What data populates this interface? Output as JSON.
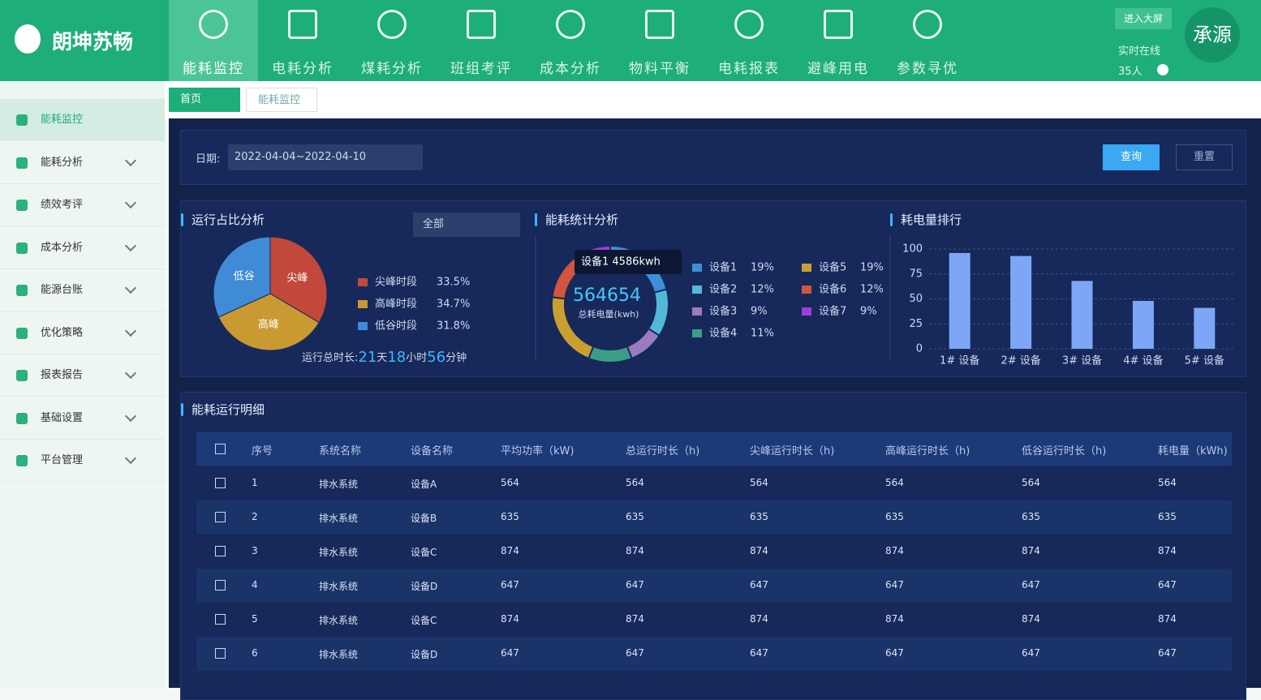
{
  "header": {
    "logo": "朗坤苏畅",
    "nav": [
      "能耗监控",
      "电耗分析",
      "煤耗分析",
      "班组考评",
      "成本分析",
      "物料平衡",
      "电耗报表",
      "避峰用电",
      "参数寻优"
    ],
    "screen_button": "进入大屏",
    "online_label": "实时在线",
    "online_count": "35人",
    "user": "承源"
  },
  "sidebar": {
    "items": [
      "能耗监控",
      "能耗分析",
      "绩效考评",
      "成本分析",
      "能源台账",
      "优化策略",
      "报表报告",
      "基础设置",
      "平台管理"
    ]
  },
  "tabs": [
    "首页",
    "能耗监控"
  ],
  "filter": {
    "date_label": "日期:",
    "date_value": "2022-04-04~2022-04-10",
    "query": "查询",
    "reset": "重置"
  },
  "runtime": {
    "title": "运行占比分析",
    "select": "全部",
    "chart": {
      "type": "pie",
      "categories": [
        "尖峰",
        "高峰",
        "低谷"
      ],
      "legend": [
        "尖峰时段",
        "高峰时段",
        "低谷时段"
      ],
      "values": [
        33.5,
        34.7,
        31.8
      ],
      "value_labels": [
        "33.5%",
        "34.7%",
        "31.8%"
      ],
      "colors": [
        "#c2483a",
        "#c99a32",
        "#3f8bd6"
      ]
    },
    "total_label": "运行总时长:",
    "total": [
      {
        "value": "21",
        "unit": "天"
      },
      {
        "value": "18",
        "unit": "小时"
      },
      {
        "value": "56",
        "unit": "分钟"
      }
    ]
  },
  "energy": {
    "title": "能耗统计分析",
    "total": "564654",
    "total_label": "总耗电量(kwh)",
    "tooltip": "设备1  4586kwh",
    "chart": {
      "type": "donut",
      "categories": [
        "设备1",
        "设备2",
        "设备3",
        "设备4",
        "设备5",
        "设备6",
        "设备7"
      ],
      "values": [
        19,
        12,
        9,
        11,
        19,
        12,
        9
      ],
      "value_labels": [
        "19%",
        "12%",
        "9%",
        "11%",
        "19%",
        "12%",
        "9%"
      ],
      "colors": [
        "#3f8fd8",
        "#52b8d8",
        "#9b7bbf",
        "#3a9e86",
        "#c9a030",
        "#d0563d",
        "#9d3ed8"
      ]
    }
  },
  "ranking": {
    "title": "耗电量排行",
    "chart": {
      "type": "bar",
      "categories": [
        "1# 设备",
        "2# 设备",
        "3# 设备",
        "4# 设备",
        "5# 设备"
      ],
      "values": [
        96,
        93,
        68,
        48,
        41
      ],
      "color": "#7ea6f6",
      "ylim": [
        0,
        100
      ],
      "yticks": [
        0,
        25,
        50,
        75,
        100
      ],
      "grid": true
    }
  },
  "detail": {
    "title": "能耗运行明细",
    "columns": [
      "序号",
      "系统名称",
      "设备名称",
      "平均功率（kW)",
      "总运行时长（h)",
      "尖峰运行时长（h)",
      "高峰运行时长（h)",
      "低谷运行时长（h)",
      "耗电量（kWh)"
    ],
    "rows": [
      [
        "1",
        "排水系统",
        "设备A",
        564,
        564,
        564,
        564,
        564,
        564
      ],
      [
        "2",
        "排水系统",
        "设备B",
        635,
        635,
        635,
        635,
        635,
        635
      ],
      [
        "3",
        "排水系统",
        "设备C",
        874,
        874,
        874,
        874,
        874,
        874
      ],
      [
        "4",
        "排水系统",
        "设备D",
        647,
        647,
        647,
        647,
        647,
        647
      ],
      [
        "5",
        "排水系统",
        "设备C",
        874,
        874,
        874,
        874,
        874,
        874
      ],
      [
        "6",
        "排水系统",
        "设备D",
        647,
        647,
        647,
        647,
        647,
        647
      ]
    ]
  }
}
